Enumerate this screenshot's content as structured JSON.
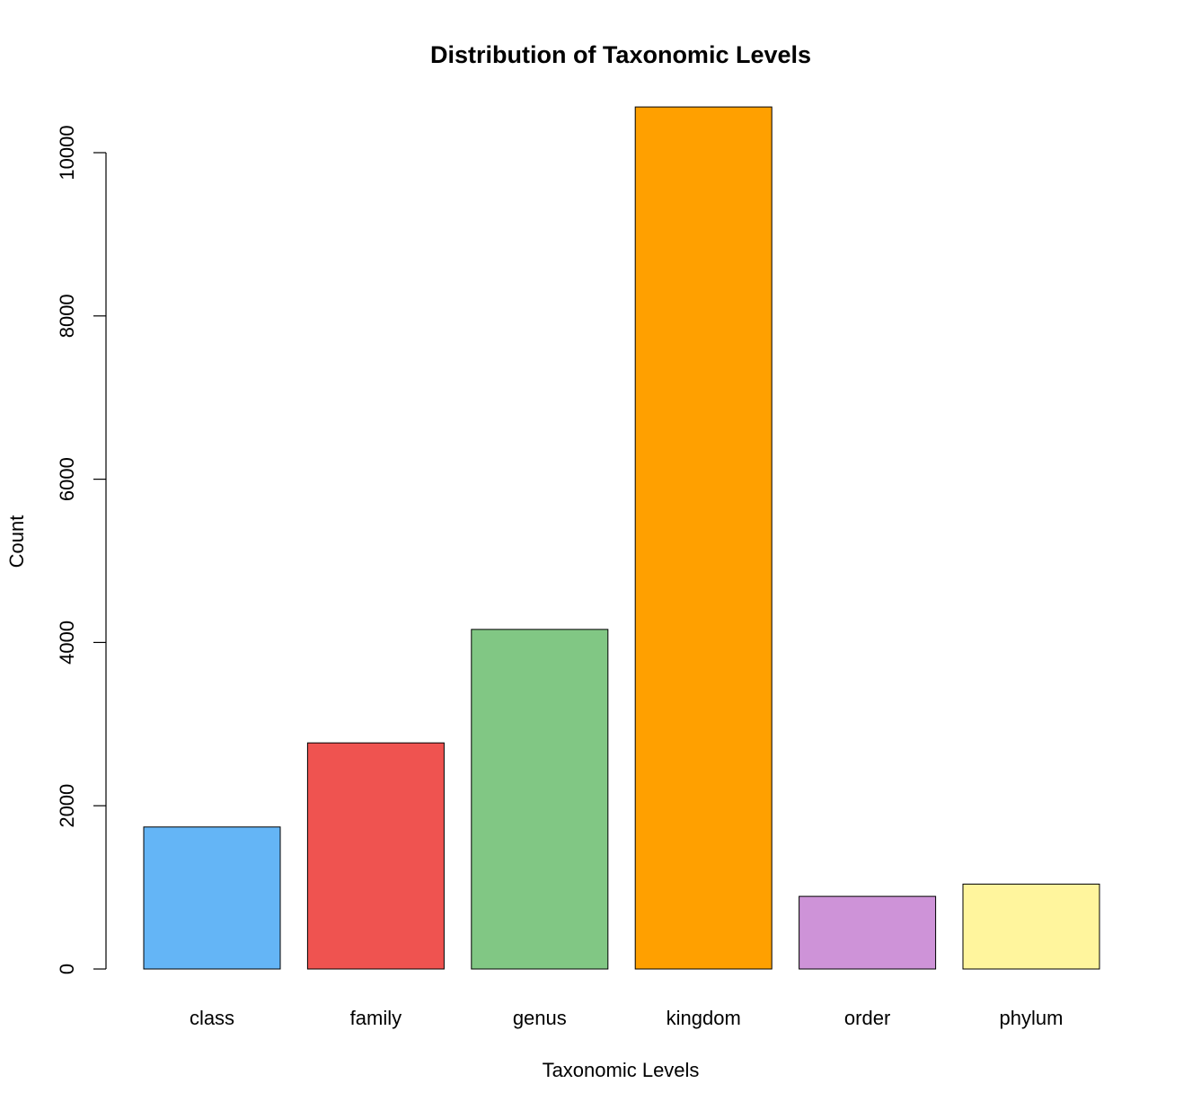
{
  "chart_data": {
    "type": "bar",
    "title": "Distribution of Taxonomic Levels",
    "xlabel": "Taxonomic Levels",
    "ylabel": "Count",
    "categories": [
      "class",
      "family",
      "genus",
      "kingdom",
      "order",
      "phylum"
    ],
    "values": [
      1740,
      2770,
      4160,
      10560,
      890,
      1040
    ],
    "colors": [
      "#64B5F6",
      "#EF5350",
      "#81C784",
      "#FFA000",
      "#CE93D8",
      "#FFF59D"
    ],
    "ylim": [
      0,
      10000
    ],
    "yticks": [
      0,
      2000,
      4000,
      6000,
      8000,
      10000
    ],
    "ytick_labels": [
      "0",
      "2000",
      "4000",
      "6000",
      "8000",
      "10000"
    ],
    "grid": false,
    "legend": "none"
  }
}
